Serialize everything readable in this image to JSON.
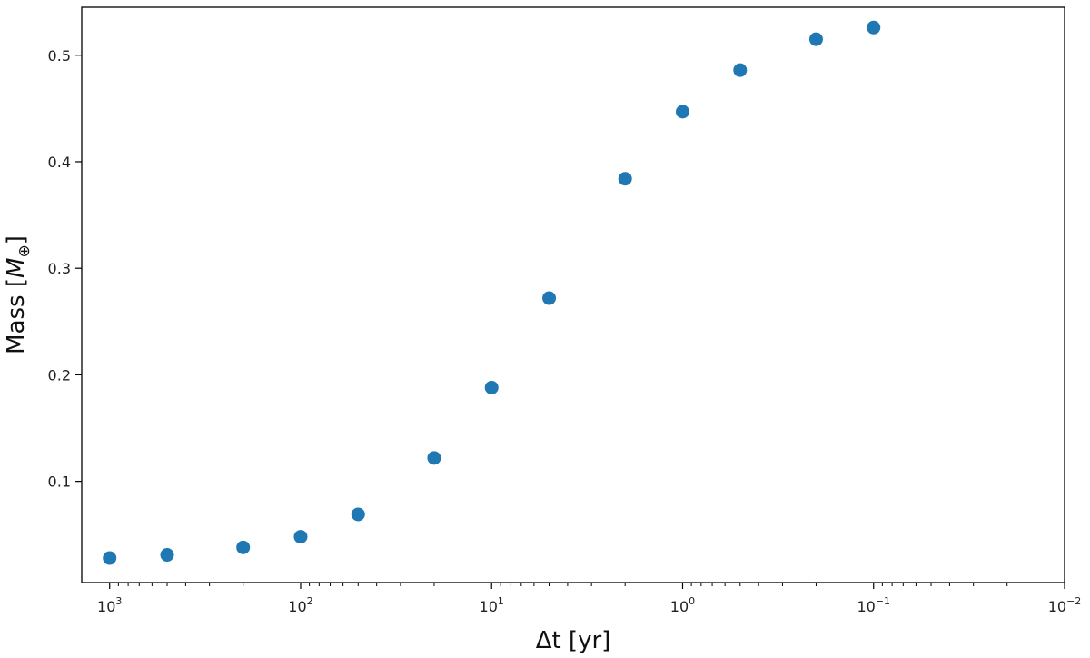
{
  "chart_data": {
    "type": "scatter",
    "title": "",
    "xlabel": "Δt [yr]",
    "ylabel_main": "Mass [",
    "ylabel_symbol": "M",
    "ylabel_subscript": "⊕",
    "ylabel_close": "]",
    "x_scale": "log",
    "x_axis_inverted": true,
    "xlim": [
      1400,
      0.01
    ],
    "ylim": [
      0.005,
      0.545
    ],
    "grid": false,
    "x_ticks": [
      {
        "value": 1000,
        "base": "10",
        "exp": "3"
      },
      {
        "value": 100,
        "base": "10",
        "exp": "2"
      },
      {
        "value": 10,
        "base": "10",
        "exp": "1"
      },
      {
        "value": 1,
        "base": "10",
        "exp": "0"
      },
      {
        "value": 0.1,
        "base": "10",
        "exp": "−1"
      },
      {
        "value": 0.01,
        "base": "10",
        "exp": "−2"
      }
    ],
    "y_ticks": [
      {
        "value": 0.1,
        "label": "0.1"
      },
      {
        "value": 0.2,
        "label": "0.2"
      },
      {
        "value": 0.3,
        "label": "0.3"
      },
      {
        "value": 0.4,
        "label": "0.4"
      },
      {
        "value": 0.5,
        "label": "0.5"
      }
    ],
    "marker_color": "#1f77b4",
    "series": [
      {
        "points": [
          {
            "x": 1000,
            "y": 0.028
          },
          {
            "x": 500,
            "y": 0.031
          },
          {
            "x": 200,
            "y": 0.038
          },
          {
            "x": 100,
            "y": 0.048
          },
          {
            "x": 50,
            "y": 0.069
          },
          {
            "x": 20,
            "y": 0.122
          },
          {
            "x": 10,
            "y": 0.188
          },
          {
            "x": 5,
            "y": 0.272
          },
          {
            "x": 2,
            "y": 0.384
          },
          {
            "x": 1,
            "y": 0.447
          },
          {
            "x": 0.5,
            "y": 0.486
          },
          {
            "x": 0.2,
            "y": 0.515
          },
          {
            "x": 0.1,
            "y": 0.526
          }
        ]
      }
    ]
  }
}
